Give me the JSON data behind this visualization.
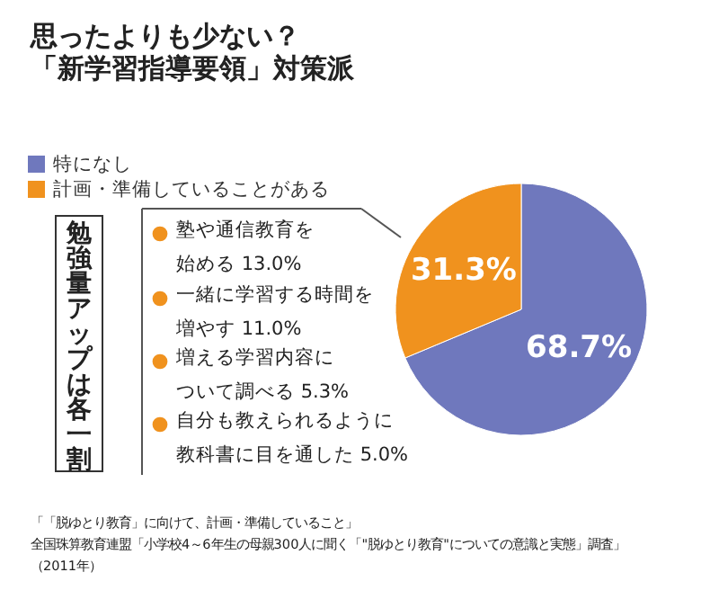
{
  "chart_data": {
    "type": "pie",
    "title": "思ったよりも少ない？",
    "subtitle": "「新学習指導要領」対策派",
    "categories": [
      "特になし",
      "計画・準備していることがある"
    ],
    "values": [
      68.7,
      31.3
    ],
    "colors": [
      "#6f78bd",
      "#f0921e"
    ],
    "value_labels": [
      "68.7%",
      "31.3%"
    ],
    "legend": "top left",
    "annotations": [
      "勉強量アップは各一割",
      "塾や通信教育を",
      "始める 13.0%",
      "一緒に学習する時間を",
      "増やす 11.0%",
      "増える学習内容に",
      "ついて調べる 5.3%",
      "自分も教えられるように",
      "教科書に目を通した 5.0%",
      "「「脱ゆとり教育」に向けて、計画・準備していること」",
      "全国珠算教育連盟「小学校4～6年生の母親300人に聞く「\"脱ゆとり教育\"についての意識と実態」調査」",
      "（2011年）"
    ]
  }
}
